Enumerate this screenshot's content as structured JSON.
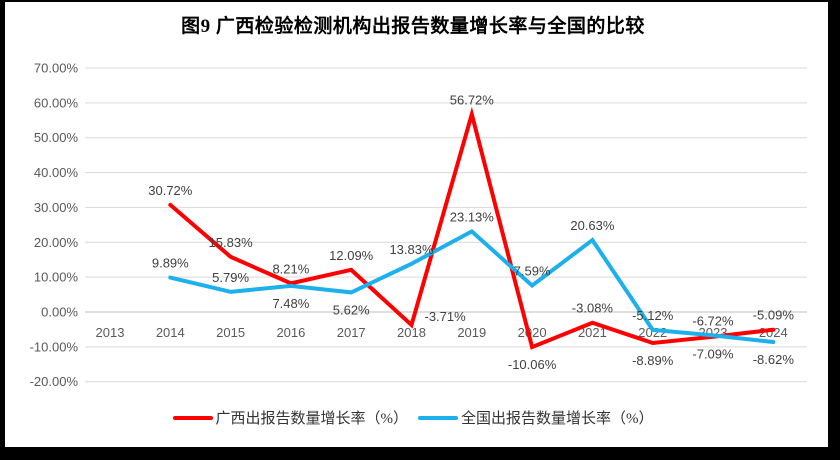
{
  "chart_data": {
    "type": "line",
    "title": "图9 广西检验检测机构出报告数量增长率与全国的比较",
    "categories": [
      "2013",
      "2014",
      "2015",
      "2016",
      "2017",
      "2018",
      "2019",
      "2020",
      "2021",
      "2022",
      "2023",
      "2024"
    ],
    "series": [
      {
        "name": "广西出报告数量增长率（%）",
        "color": "#FF0000",
        "values": [
          null,
          30.72,
          15.83,
          8.21,
          12.09,
          -3.71,
          56.72,
          -10.06,
          -3.08,
          -8.89,
          -7.09,
          -5.09
        ],
        "label_pos": [
          null,
          "above",
          "above",
          "above",
          "above",
          "right",
          "above",
          "below",
          "above",
          "below",
          "below",
          "above"
        ]
      },
      {
        "name": "全国出报告数量增长率（%）",
        "color": "#1CB0EC",
        "values": [
          null,
          9.89,
          5.79,
          7.48,
          5.62,
          13.83,
          23.13,
          7.59,
          20.63,
          -5.12,
          -6.72,
          -8.62
        ],
        "label_pos": [
          null,
          "above",
          "above",
          "below",
          "below",
          "above",
          "above",
          "above",
          "above",
          "above",
          "above",
          "below"
        ]
      }
    ],
    "ylim": [
      -20,
      70
    ],
    "ytick_step": 10,
    "ytick_format": "0.00%",
    "grid": true,
    "legend_position": "bottom",
    "grid_color": "#D9D9D9",
    "axis_line_color": "#BFBFBF",
    "tick_label_color": "#595959",
    "data_label_color": "#404040"
  }
}
